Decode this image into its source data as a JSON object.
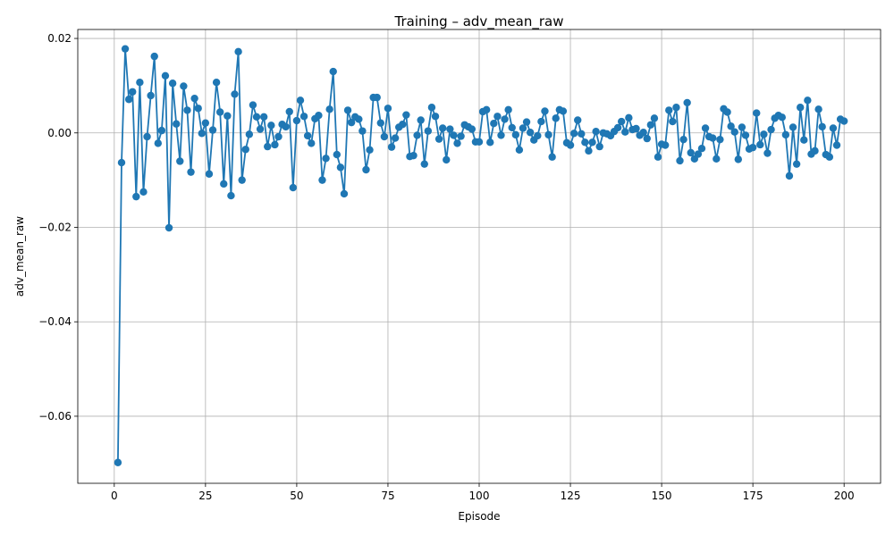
{
  "chart_data": {
    "type": "line",
    "title": "Training – adv_mean_raw",
    "xlabel": "Episode",
    "ylabel": "adv_mean_raw",
    "xlim": [
      -10,
      210
    ],
    "ylim": [
      -0.0742,
      0.0219
    ],
    "xticks": [
      0,
      25,
      50,
      75,
      100,
      125,
      150,
      175,
      200
    ],
    "xtick_labels": [
      "0",
      "25",
      "50",
      "75",
      "100",
      "125",
      "150",
      "175",
      "200"
    ],
    "yticks": [
      -0.06,
      -0.04,
      -0.02,
      0.0,
      0.02
    ],
    "ytick_labels": [
      "−0.06",
      "−0.04",
      "−0.02",
      "0.00",
      "0.02"
    ],
    "grid": true,
    "markers": true,
    "line_color": "#1f77b4",
    "series": [
      {
        "x": [
          1,
          2,
          3,
          4,
          5,
          6,
          7,
          8,
          9,
          10,
          11,
          12,
          13,
          14,
          15,
          16,
          17,
          18,
          19,
          20,
          21,
          22,
          23,
          24,
          25,
          26,
          27,
          28,
          29,
          30,
          31,
          32,
          33,
          34,
          35,
          36,
          37,
          38,
          39,
          40,
          41,
          42,
          43,
          44,
          45,
          46,
          47,
          48,
          49,
          50,
          51,
          52,
          53,
          54,
          55,
          56,
          57,
          58,
          59,
          60,
          61,
          62,
          63,
          64,
          65,
          66,
          67,
          68,
          69,
          70,
          71,
          72,
          73,
          74,
          75,
          76,
          77,
          78,
          79,
          80,
          81,
          82,
          83,
          84,
          85,
          86,
          87,
          88,
          89,
          90,
          91,
          92,
          93,
          94,
          95,
          96,
          97,
          98,
          99,
          100,
          101,
          102,
          103,
          104,
          105,
          106,
          107,
          108,
          109,
          110,
          111,
          112,
          113,
          114,
          115,
          116,
          117,
          118,
          119,
          120,
          121,
          122,
          123,
          124,
          125,
          126,
          127,
          128,
          129,
          130,
          131,
          132,
          133,
          134,
          135,
          136,
          137,
          138,
          139,
          140,
          141,
          142,
          143,
          144,
          145,
          146,
          147,
          148,
          149,
          150,
          151,
          152,
          153,
          154,
          155,
          156,
          157,
          158,
          159,
          160,
          161,
          162,
          163,
          164,
          165,
          166,
          167,
          168,
          169,
          170,
          171,
          172,
          173,
          174,
          175,
          176,
          177,
          178,
          179,
          180,
          181,
          182,
          183,
          184,
          185,
          186,
          187,
          188,
          189,
          190,
          191,
          192,
          193,
          194,
          195,
          196,
          197,
          198,
          199,
          200
        ],
        "values": [
          -0.0698,
          -0.0063,
          0.0178,
          0.0071,
          0.0087,
          -0.0135,
          0.0107,
          -0.0125,
          -0.0008,
          0.0079,
          0.0162,
          -0.0022,
          0.0005,
          0.0121,
          -0.0201,
          0.0105,
          0.0019,
          -0.006,
          0.0099,
          0.0048,
          -0.0083,
          0.0073,
          0.0052,
          -0.0001,
          0.0021,
          -0.0087,
          0.0006,
          0.0107,
          0.0044,
          -0.0108,
          0.0036,
          -0.0133,
          0.0082,
          0.0172,
          -0.01,
          -0.0035,
          -0.0003,
          0.0059,
          0.0034,
          0.0008,
          0.0034,
          -0.0029,
          0.0016,
          -0.0025,
          -0.0008,
          0.0018,
          0.0013,
          0.0045,
          -0.0116,
          0.0026,
          0.0069,
          0.0035,
          -0.0006,
          -0.0022,
          0.003,
          0.0037,
          -0.01,
          -0.0054,
          0.005,
          0.013,
          -0.0046,
          -0.0073,
          -0.0129,
          0.0048,
          0.0022,
          0.0034,
          0.0029,
          0.0004,
          -0.0078,
          -0.0036,
          0.0075,
          0.0075,
          0.0021,
          -0.0008,
          0.0052,
          -0.003,
          -0.0011,
          0.0012,
          0.0018,
          0.0038,
          -0.005,
          -0.0048,
          -0.0005,
          0.0027,
          -0.0066,
          0.0004,
          0.0054,
          0.0035,
          -0.0013,
          0.001,
          -0.0057,
          0.0008,
          -0.0005,
          -0.0022,
          -0.0007,
          0.0017,
          0.0013,
          0.0008,
          -0.0019,
          -0.0019,
          0.0045,
          0.0049,
          -0.002,
          0.002,
          0.0035,
          -0.0005,
          0.0029,
          0.0049,
          0.0011,
          -0.0004,
          -0.0036,
          0.001,
          0.0023,
          0.0001,
          -0.0015,
          -0.0006,
          0.0024,
          0.0046,
          -0.0004,
          -0.0051,
          0.0031,
          0.0049,
          0.0046,
          -0.0021,
          -0.0026,
          -0.0001,
          0.0027,
          -0.0002,
          -0.002,
          -0.0038,
          -0.002,
          0.0003,
          -0.0029,
          0.0,
          -0.0002,
          -0.0006,
          0.0003,
          0.0011,
          0.0024,
          0.0002,
          0.0032,
          0.0007,
          0.0009,
          -0.0005,
          0.0001,
          -0.0012,
          0.0017,
          0.0031,
          -0.0051,
          -0.0024,
          -0.0026,
          0.0048,
          0.0024,
          0.0054,
          -0.0059,
          -0.0014,
          0.0064,
          -0.0042,
          -0.0055,
          -0.0045,
          -0.0033,
          0.001,
          -0.0008,
          -0.0011,
          -0.0055,
          -0.0014,
          0.0051,
          0.0044,
          0.0014,
          0.0002,
          -0.0056,
          0.0012,
          -0.0005,
          -0.0034,
          -0.0031,
          0.0042,
          -0.0025,
          -0.0003,
          -0.0043,
          0.0007,
          0.0031,
          0.0037,
          0.0033,
          -0.0004,
          -0.0091,
          0.0012,
          -0.0066,
          0.0054,
          -0.0015,
          0.0069,
          -0.0045,
          -0.0038,
          0.005,
          0.0013,
          -0.0046,
          -0.0051,
          0.001,
          -0.0026,
          0.0029,
          0.0025
        ]
      }
    ]
  }
}
